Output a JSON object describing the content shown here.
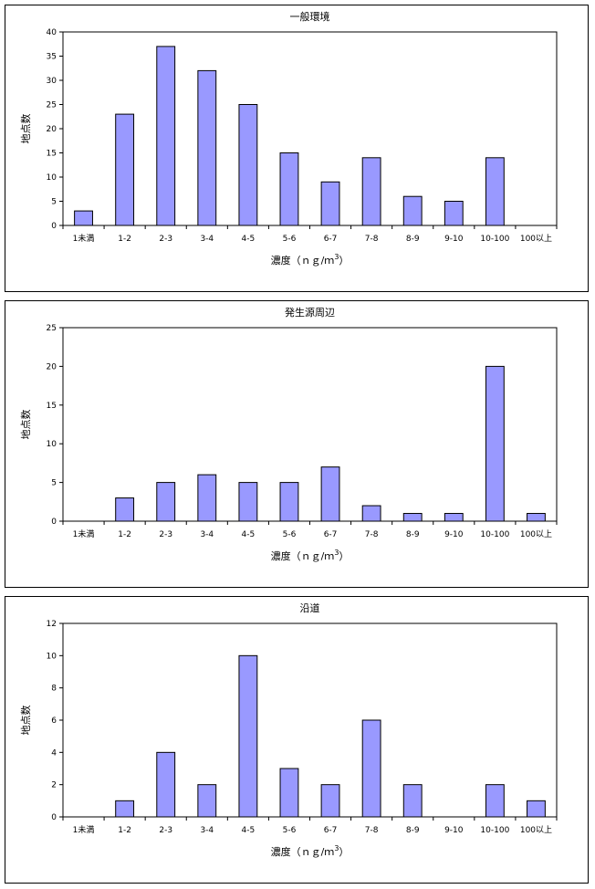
{
  "chart_data": [
    {
      "type": "bar",
      "title": "一般環境",
      "xlabel": "濃度（ｎｇ/ｍ3）",
      "ylabel": "地点数",
      "categories": [
        "1未満",
        "1-2",
        "2-3",
        "3-4",
        "4-5",
        "5-6",
        "6-7",
        "7-8",
        "8-9",
        "9-10",
        "10-100",
        "100以上"
      ],
      "values": [
        3,
        23,
        37,
        32,
        25,
        15,
        9,
        14,
        6,
        5,
        14,
        0
      ],
      "ylim": [
        0,
        40
      ],
      "yticks": [
        0,
        5,
        10,
        15,
        20,
        25,
        30,
        35,
        40
      ],
      "bar_color": "#9999ff"
    },
    {
      "type": "bar",
      "title": "発生源周辺",
      "xlabel": "濃度（ｎｇ/ｍ3）",
      "ylabel": "地点数",
      "categories": [
        "1未満",
        "1-2",
        "2-3",
        "3-4",
        "4-5",
        "5-6",
        "6-7",
        "7-8",
        "8-9",
        "9-10",
        "10-100",
        "100以上"
      ],
      "values": [
        0,
        3,
        5,
        6,
        5,
        5,
        7,
        2,
        1,
        1,
        20,
        1
      ],
      "ylim": [
        0,
        25
      ],
      "yticks": [
        0,
        5,
        10,
        15,
        20,
        25
      ],
      "bar_color": "#9999ff"
    },
    {
      "type": "bar",
      "title": "沿道",
      "xlabel": "濃度（ｎｇ/ｍ3）",
      "ylabel": "地点数",
      "categories": [
        "1未満",
        "1-2",
        "2-3",
        "3-4",
        "4-5",
        "5-6",
        "6-7",
        "7-8",
        "8-9",
        "9-10",
        "10-100",
        "100以上"
      ],
      "values": [
        0,
        1,
        4,
        2,
        10,
        3,
        2,
        6,
        2,
        0,
        2,
        1
      ],
      "ylim": [
        0,
        12
      ],
      "yticks": [
        0,
        2,
        4,
        6,
        8,
        10,
        12
      ],
      "bar_color": "#9999ff"
    }
  ]
}
